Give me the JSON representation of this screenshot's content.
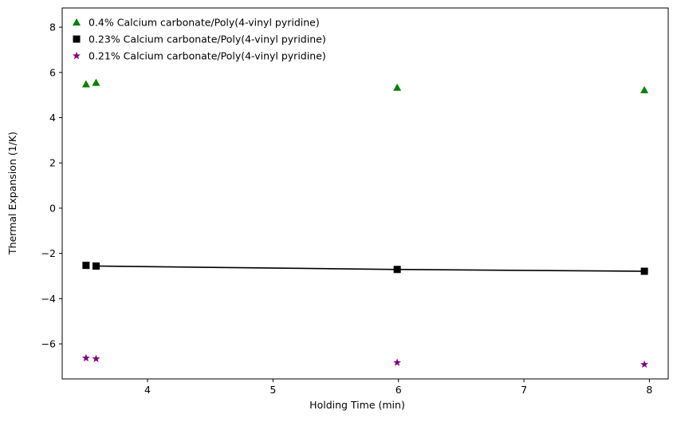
{
  "chart_data": {
    "type": "scatter",
    "title": "",
    "xlabel": "Holding Time (min)",
    "ylabel": "Thermal Expansion (1/K)",
    "xlim": [
      3.32,
      8.15
    ],
    "ylim": [
      -7.55,
      8.85
    ],
    "xticks": [
      4,
      5,
      6,
      7,
      8
    ],
    "yticks": [
      -6,
      -4,
      -2,
      0,
      2,
      4,
      6,
      8
    ],
    "grid": false,
    "legend_position": "top-left",
    "series": [
      {
        "name": "0.4% Calcium carbonate/Poly(4-vinyl pyridine)",
        "marker": "triangle",
        "color": "#008000",
        "x": [
          3.51,
          3.59,
          5.99,
          7.96
        ],
        "y": [
          5.48,
          5.55,
          5.33,
          5.22
        ]
      },
      {
        "name": "0.23% Calcium carbonate/Poly(4-vinyl pyridine)",
        "marker": "square",
        "color": "#000000",
        "x": [
          3.51,
          3.59,
          5.99,
          7.96
        ],
        "y": [
          -2.53,
          -2.56,
          -2.71,
          -2.79
        ]
      },
      {
        "name": "0.21% Calcium carbonate/Poly(4-vinyl pyridine)",
        "marker": "star",
        "color": "#800080",
        "x": [
          3.51,
          3.59,
          5.99,
          7.96
        ],
        "y": [
          -6.63,
          -6.66,
          -6.83,
          -6.91
        ]
      }
    ],
    "fit_line": {
      "color": "#000000",
      "x": [
        3.59,
        5.99,
        7.96
      ],
      "y": [
        -2.56,
        -2.71,
        -2.79
      ]
    }
  }
}
